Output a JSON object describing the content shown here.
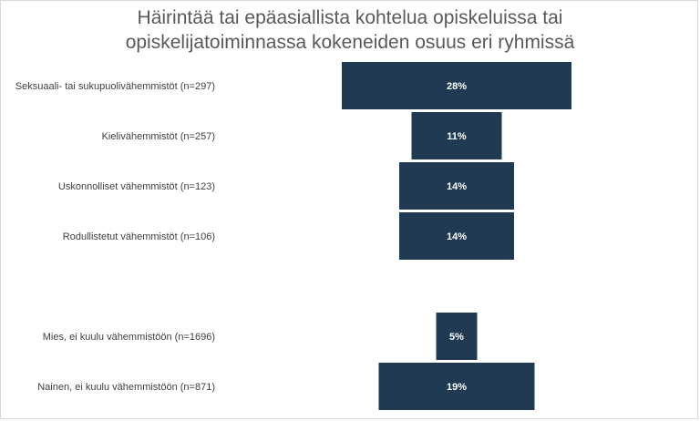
{
  "chart_data": {
    "type": "bar",
    "title": "Häirintää tai epäasiallista kohtelua opiskeluissa tai opiskelijatoiminnassa kokeneiden osuus eri ryhmissä",
    "title_lines": [
      "Häirintää tai epäasiallista kohtelua opiskeluissa tai",
      "opiskelijatoiminnassa kokeneiden osuus eri ryhmissä"
    ],
    "categories": [
      "Seksuaali- tai sukupuolivähemmistöt (n=297)",
      "Kielivähemmistöt (n=257)",
      "Uskonnolliset vähemmistöt (n=123)",
      "Rodullistetut vähemmistöt (n=106)",
      "Mies, ei kuulu vähemmistöön (n=1696)",
      "Nainen, ei kuulu vähemmistöön (n=871)"
    ],
    "values": [
      28,
      11,
      14,
      14,
      5,
      19
    ],
    "value_labels": [
      "28%",
      "11%",
      "14%",
      "14%",
      "5%",
      "19%"
    ],
    "unit": "%",
    "orientation": "horizontal-centered",
    "grid": false,
    "legend": "none",
    "bar_color": "#1f3a52"
  }
}
